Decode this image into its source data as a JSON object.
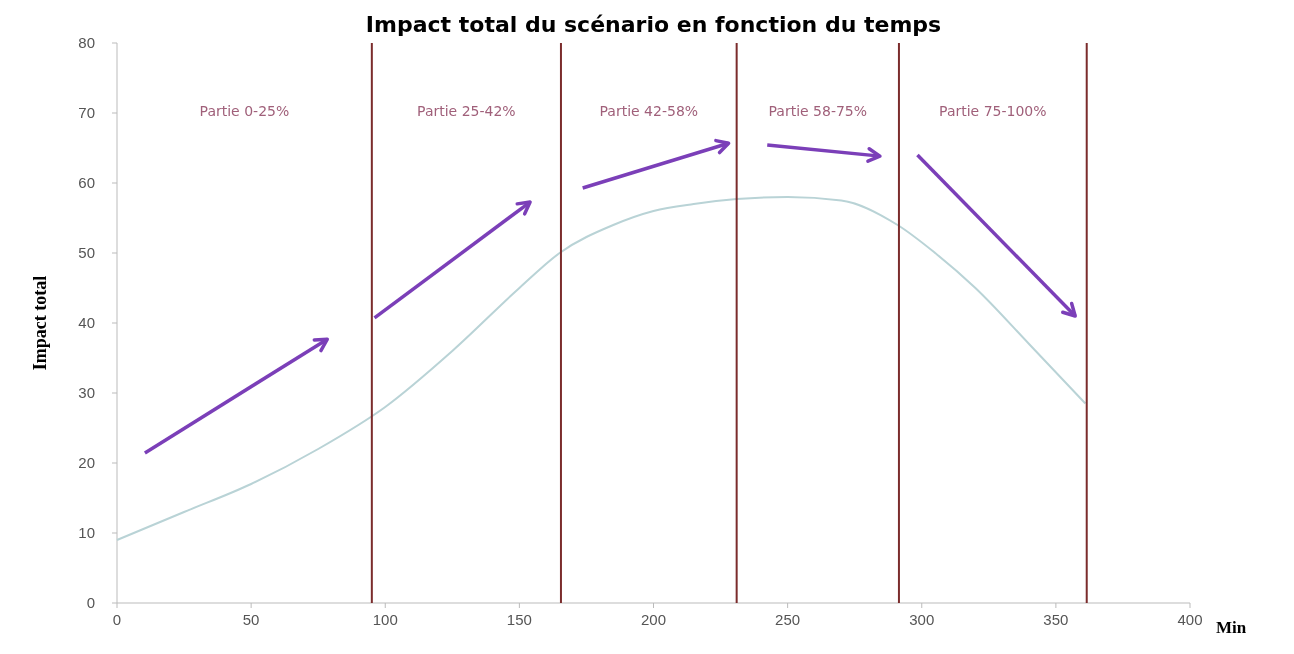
{
  "chart_data": {
    "type": "line",
    "title": "Impact total du scénario en fonction du temps",
    "xlabel": "Min",
    "ylabel": "Impact total",
    "x": [
      0,
      25,
      50,
      75,
      100,
      125,
      150,
      165,
      185,
      200,
      215,
      231,
      250,
      270,
      291,
      305,
      320,
      340,
      361
    ],
    "series": [
      {
        "color": "#b9d3d6",
        "values": [
          9,
          13,
          17,
          22,
          28,
          36,
          45,
          50,
          54,
          56,
          57,
          57.7,
          58,
          57.5,
          54,
          50,
          45,
          37,
          28.5
        ]
      }
    ],
    "xlim": [
      0,
      400
    ],
    "xticks": [
      0,
      50,
      100,
      150,
      200,
      250,
      300,
      350,
      400
    ],
    "ylim": [
      0,
      80
    ],
    "yticks": [
      0,
      10,
      20,
      30,
      40,
      50,
      60,
      70,
      80
    ],
    "grid": false,
    "marker": "none",
    "ref_lines": [
      {
        "axis": "x",
        "value": 95,
        "color": "#7b2c2c"
      },
      {
        "axis": "x",
        "value": 165.5,
        "color": "#7b2c2c"
      },
      {
        "axis": "x",
        "value": 231,
        "color": "#7b2c2c"
      },
      {
        "axis": "x",
        "value": 291.5,
        "color": "#7b2c2c"
      },
      {
        "axis": "x",
        "value": 361.5,
        "color": "#7b2c2c"
      }
    ],
    "annotations": [
      "Partie 0-25%",
      "Partie 25-42%",
      "Partie 42-58%",
      "Partie 58-75%",
      "Partie 75-100%"
    ]
  }
}
